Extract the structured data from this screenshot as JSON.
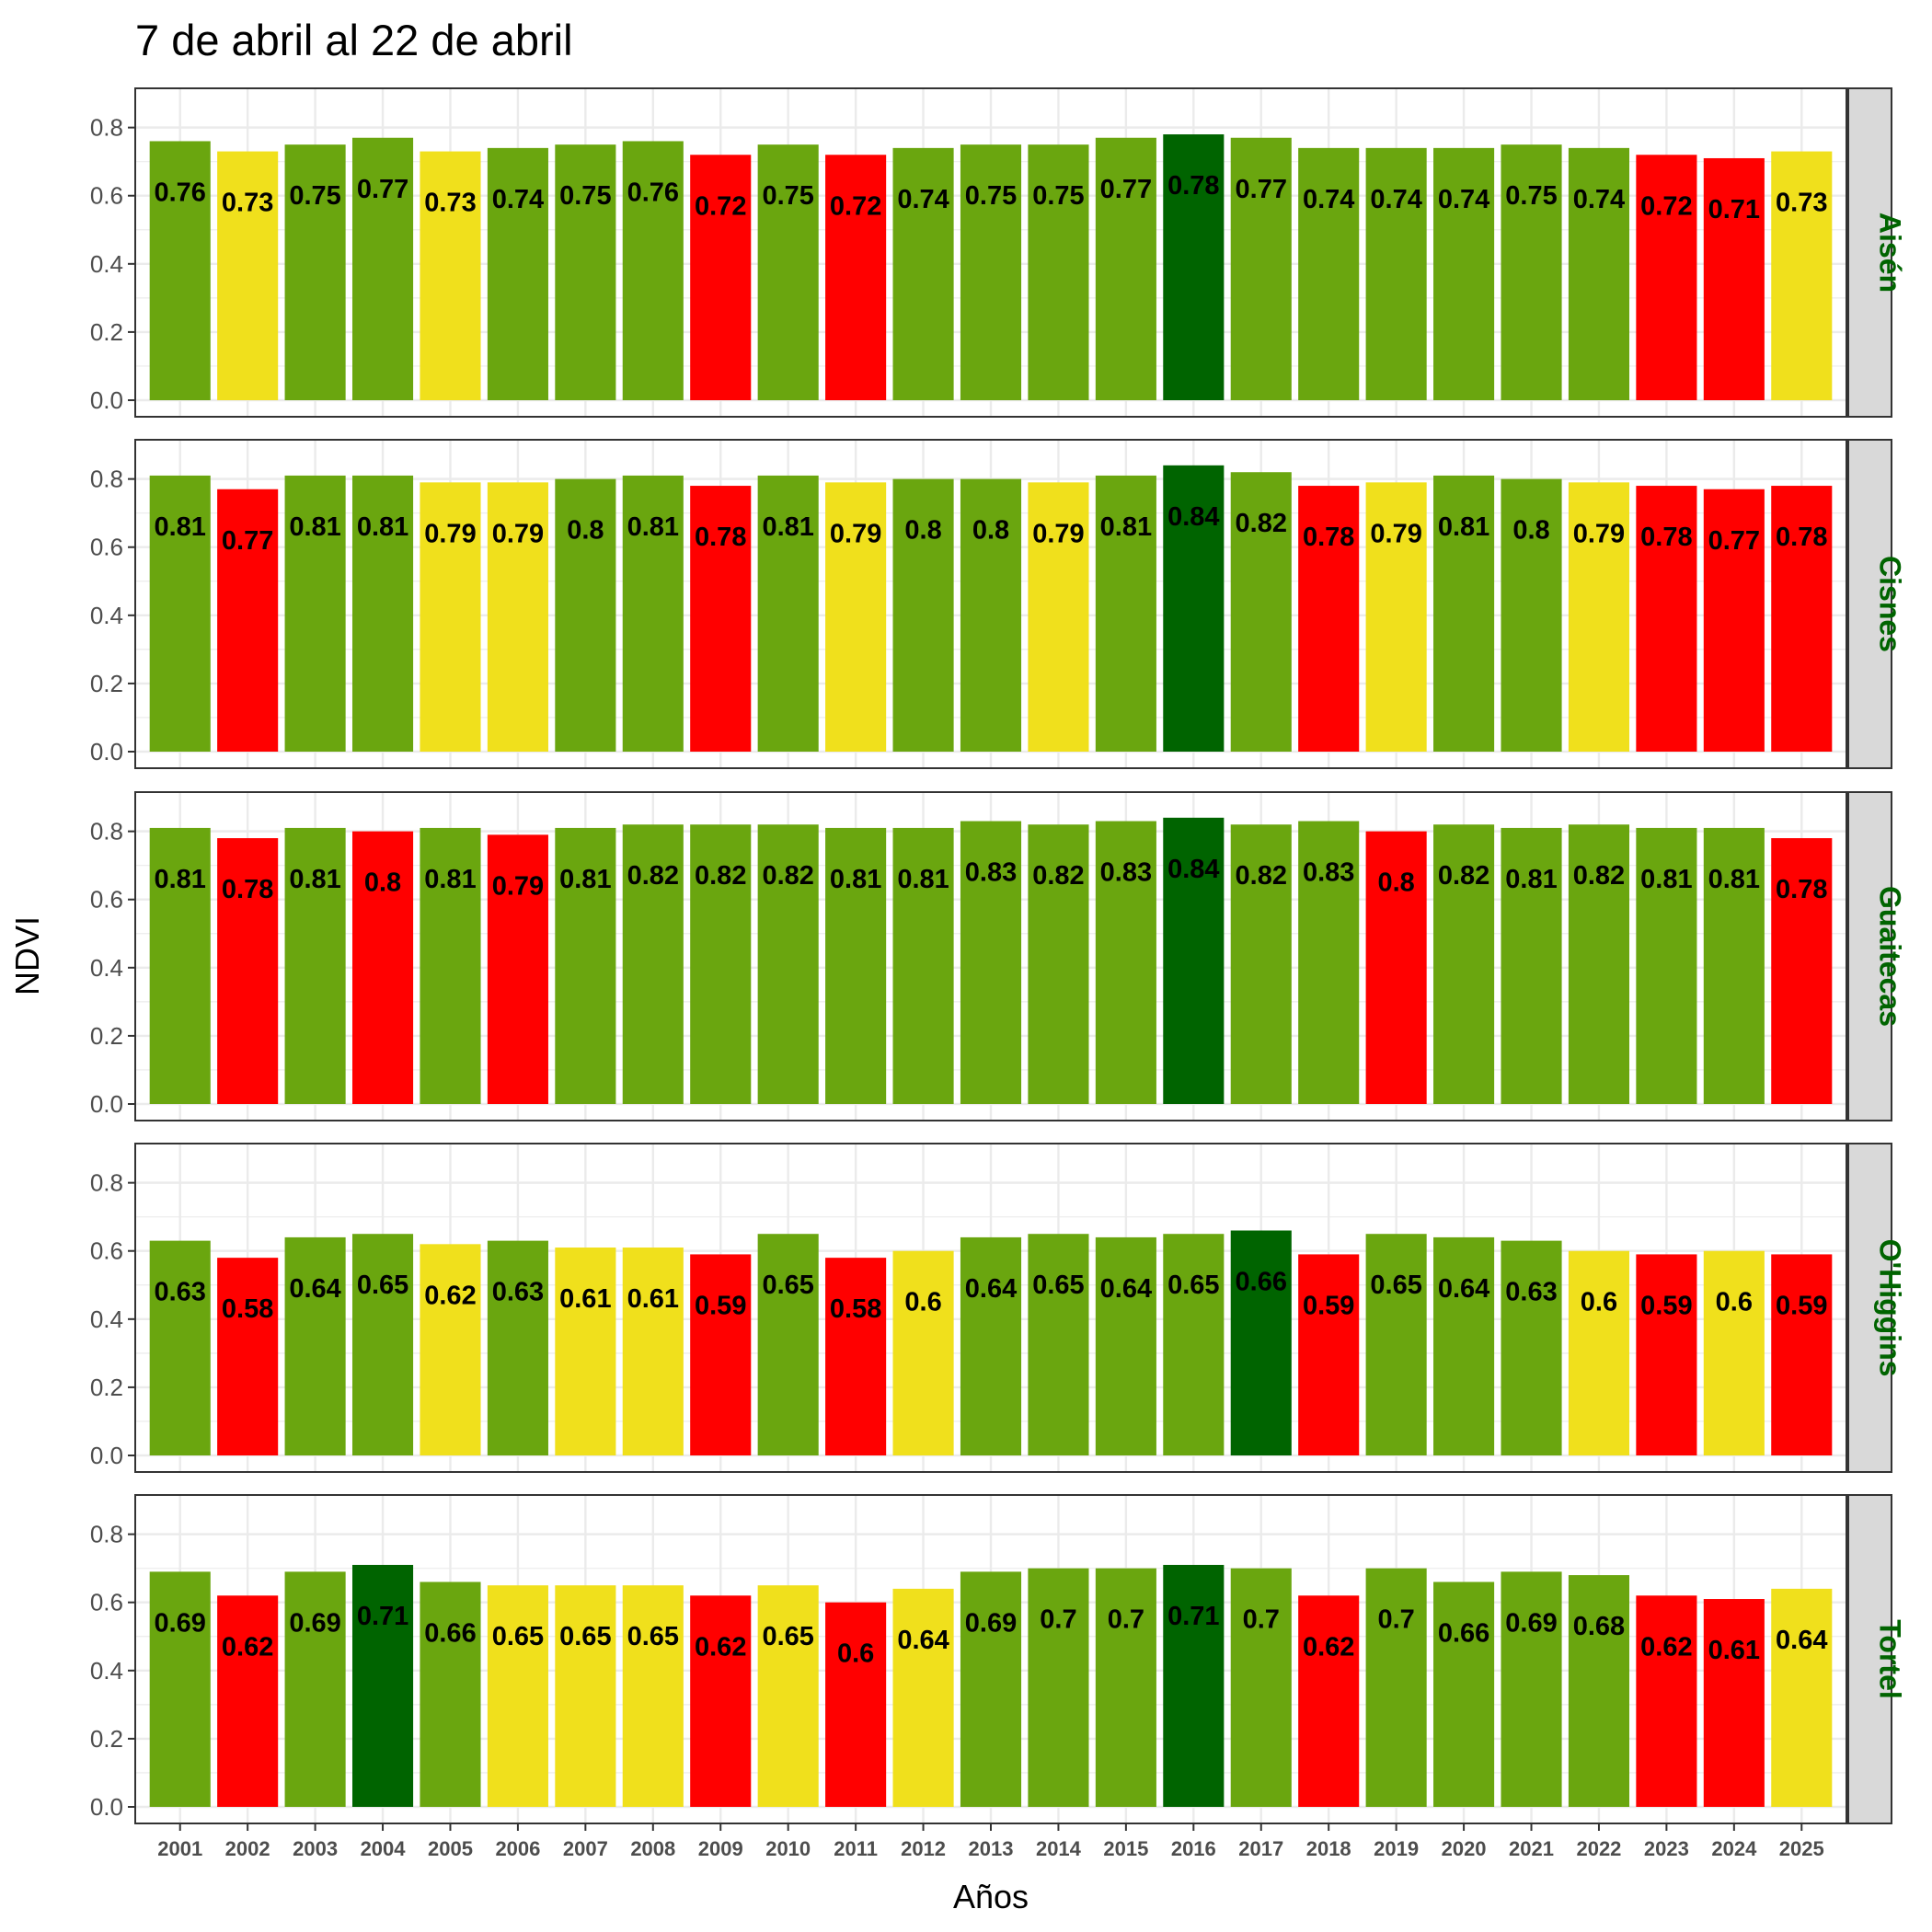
{
  "chart_data": {
    "type": "bar",
    "title": "7 de abril al 22 de abril",
    "xlabel": "Años",
    "ylabel": "NDVI",
    "ylim": [
      0,
      0.88
    ],
    "yticks": [
      "0.0",
      "0.2",
      "0.4",
      "0.6",
      "0.8"
    ],
    "ytick_values": [
      0,
      0.2,
      0.4,
      0.6,
      0.8
    ],
    "categories": [
      "2001",
      "2002",
      "2003",
      "2004",
      "2005",
      "2006",
      "2007",
      "2008",
      "2009",
      "2010",
      "2011",
      "2012",
      "2013",
      "2014",
      "2015",
      "2016",
      "2017",
      "2018",
      "2019",
      "2020",
      "2021",
      "2022",
      "2023",
      "2024",
      "2025"
    ],
    "grid": true,
    "facet_strip_position": "right",
    "colors": {
      "high": "#006400",
      "normal": "#6aa60f",
      "medium": "#f0e01c",
      "low": "#ff0000",
      "strip_bg": "#d9d9d9",
      "strip_text": "#006400",
      "grid": "#ebebeb",
      "border": "#333333"
    },
    "panels": [
      {
        "name": "Aisén",
        "values": [
          0.76,
          0.73,
          0.75,
          0.77,
          0.73,
          0.74,
          0.75,
          0.76,
          0.72,
          0.75,
          0.72,
          0.74,
          0.75,
          0.75,
          0.77,
          0.78,
          0.77,
          0.74,
          0.74,
          0.74,
          0.75,
          0.74,
          0.72,
          0.71,
          0.73
        ],
        "labels": [
          "0.76",
          "0.73",
          "0.75",
          "0.77",
          "0.73",
          "0.74",
          "0.75",
          "0.76",
          "0.72",
          "0.75",
          "0.72",
          "0.74",
          "0.75",
          "0.75",
          "0.77",
          "0.78",
          "0.77",
          "0.74",
          "0.74",
          "0.74",
          "0.75",
          "0.74",
          "0.72",
          "0.71",
          "0.73"
        ],
        "classes": [
          "normal",
          "medium",
          "normal",
          "normal",
          "medium",
          "normal",
          "normal",
          "normal",
          "low",
          "normal",
          "low",
          "normal",
          "normal",
          "normal",
          "normal",
          "high",
          "normal",
          "normal",
          "normal",
          "normal",
          "normal",
          "normal",
          "low",
          "low",
          "medium"
        ]
      },
      {
        "name": "Cisnes",
        "values": [
          0.81,
          0.77,
          0.81,
          0.81,
          0.79,
          0.79,
          0.8,
          0.81,
          0.78,
          0.81,
          0.79,
          0.8,
          0.8,
          0.79,
          0.81,
          0.84,
          0.82,
          0.78,
          0.79,
          0.81,
          0.8,
          0.79,
          0.78,
          0.77,
          0.78
        ],
        "labels": [
          "0.81",
          "0.77",
          "0.81",
          "0.81",
          "0.79",
          "0.79",
          "0.8",
          "0.81",
          "0.78",
          "0.81",
          "0.79",
          "0.8",
          "0.8",
          "0.79",
          "0.81",
          "0.84",
          "0.82",
          "0.78",
          "0.79",
          "0.81",
          "0.8",
          "0.79",
          "0.78",
          "0.77",
          "0.78"
        ],
        "classes": [
          "normal",
          "low",
          "normal",
          "normal",
          "medium",
          "medium",
          "normal",
          "normal",
          "low",
          "normal",
          "medium",
          "normal",
          "normal",
          "medium",
          "normal",
          "high",
          "normal",
          "low",
          "medium",
          "normal",
          "normal",
          "medium",
          "low",
          "low",
          "low"
        ]
      },
      {
        "name": "Guaitecas",
        "values": [
          0.81,
          0.78,
          0.81,
          0.8,
          0.81,
          0.79,
          0.81,
          0.82,
          0.82,
          0.82,
          0.81,
          0.81,
          0.83,
          0.82,
          0.83,
          0.84,
          0.82,
          0.83,
          0.8,
          0.82,
          0.81,
          0.82,
          0.81,
          0.81,
          0.78
        ],
        "labels": [
          "0.81",
          "0.78",
          "0.81",
          "0.8",
          "0.81",
          "0.79",
          "0.81",
          "0.82",
          "0.82",
          "0.82",
          "0.81",
          "0.81",
          "0.83",
          "0.82",
          "0.83",
          "0.84",
          "0.82",
          "0.83",
          "0.8",
          "0.82",
          "0.81",
          "0.82",
          "0.81",
          "0.81",
          "0.78"
        ],
        "classes": [
          "normal",
          "low",
          "normal",
          "low",
          "normal",
          "low",
          "normal",
          "normal",
          "normal",
          "normal",
          "normal",
          "normal",
          "normal",
          "normal",
          "normal",
          "high",
          "normal",
          "normal",
          "low",
          "normal",
          "normal",
          "normal",
          "normal",
          "normal",
          "low"
        ]
      },
      {
        "name": "O'Higgins",
        "values": [
          0.63,
          0.58,
          0.64,
          0.65,
          0.62,
          0.63,
          0.61,
          0.61,
          0.59,
          0.65,
          0.58,
          0.6,
          0.64,
          0.65,
          0.64,
          0.65,
          0.66,
          0.59,
          0.65,
          0.64,
          0.63,
          0.6,
          0.59,
          0.6,
          0.59
        ],
        "labels": [
          "0.63",
          "0.58",
          "0.64",
          "0.65",
          "0.62",
          "0.63",
          "0.61",
          "0.61",
          "0.59",
          "0.65",
          "0.58",
          "0.6",
          "0.64",
          "0.65",
          "0.64",
          "0.65",
          "0.66",
          "0.59",
          "0.65",
          "0.64",
          "0.63",
          "0.6",
          "0.59",
          "0.6",
          "0.59"
        ],
        "classes": [
          "normal",
          "low",
          "normal",
          "normal",
          "medium",
          "normal",
          "medium",
          "medium",
          "low",
          "normal",
          "low",
          "medium",
          "normal",
          "normal",
          "normal",
          "normal",
          "high",
          "low",
          "normal",
          "normal",
          "normal",
          "medium",
          "low",
          "medium",
          "low"
        ]
      },
      {
        "name": "Tortel",
        "values": [
          0.69,
          0.62,
          0.69,
          0.71,
          0.66,
          0.65,
          0.65,
          0.65,
          0.62,
          0.65,
          0.6,
          0.64,
          0.69,
          0.7,
          0.7,
          0.71,
          0.7,
          0.62,
          0.7,
          0.66,
          0.69,
          0.68,
          0.62,
          0.61,
          0.64
        ],
        "labels": [
          "0.69",
          "0.62",
          "0.69",
          "0.71",
          "0.66",
          "0.65",
          "0.65",
          "0.65",
          "0.62",
          "0.65",
          "0.6",
          "0.64",
          "0.69",
          "0.7",
          "0.7",
          "0.71",
          "0.7",
          "0.62",
          "0.7",
          "0.66",
          "0.69",
          "0.68",
          "0.62",
          "0.61",
          "0.64"
        ],
        "classes": [
          "normal",
          "low",
          "normal",
          "high",
          "normal",
          "medium",
          "medium",
          "medium",
          "low",
          "medium",
          "low",
          "medium",
          "normal",
          "normal",
          "normal",
          "high",
          "normal",
          "low",
          "normal",
          "normal",
          "normal",
          "normal",
          "low",
          "low",
          "medium"
        ]
      }
    ]
  }
}
